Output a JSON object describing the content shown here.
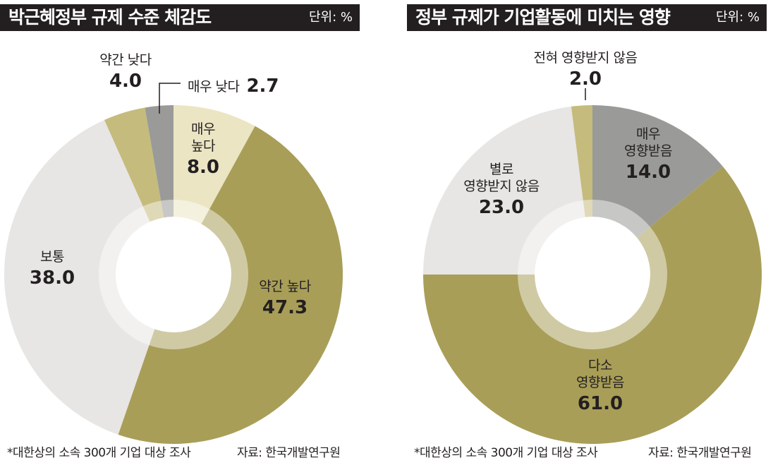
{
  "footnote": "*대한상의 소속 300개 기업 대상 조사",
  "source": "자료: 한국개발연구원",
  "unit": "단위: %",
  "chart_data": [
    {
      "type": "pie",
      "title": "박근혜정부 규제 수준 체감도",
      "unit": "단위: %",
      "categories": [
        "매우 높다",
        "약간 높다",
        "보통",
        "약간 낮다",
        "매우 낮다"
      ],
      "values": [
        8.0,
        47.3,
        38.0,
        4.0,
        2.7
      ],
      "value_labels": [
        "8.0",
        "47.3",
        "38.0",
        "4.0",
        "2.7"
      ],
      "colors": [
        "#ebe5c3",
        "#a89e58",
        "#e7e6e4",
        "#c5bb7c",
        "#9a9a98"
      ],
      "label_lines": [
        [
          "매우",
          "높다"
        ],
        [
          "약간 높다"
        ],
        [
          "보통"
        ],
        [
          "약간 낮다"
        ],
        [
          "매우 낮다"
        ]
      ],
      "style": "donut"
    },
    {
      "type": "pie",
      "title": "정부 규제가 기업활동에 미치는 영향",
      "unit": "단위: %",
      "categories": [
        "매우 영향받음",
        "다소 영향받음",
        "별로 영향받지 않음",
        "전혀 영향받지 않음"
      ],
      "values": [
        14.0,
        61.0,
        23.0,
        2.0
      ],
      "value_labels": [
        "14.0",
        "61.0",
        "23.0",
        "2.0"
      ],
      "colors": [
        "#9a9a98",
        "#a89e58",
        "#e7e6e4",
        "#c5bb7c"
      ],
      "label_lines": [
        [
          "매우",
          "영향받음"
        ],
        [
          "다소",
          "영향받음"
        ],
        [
          "별로",
          "영향받지 않음"
        ],
        [
          "전혀 영향받지 않음"
        ]
      ],
      "style": "donut"
    }
  ]
}
